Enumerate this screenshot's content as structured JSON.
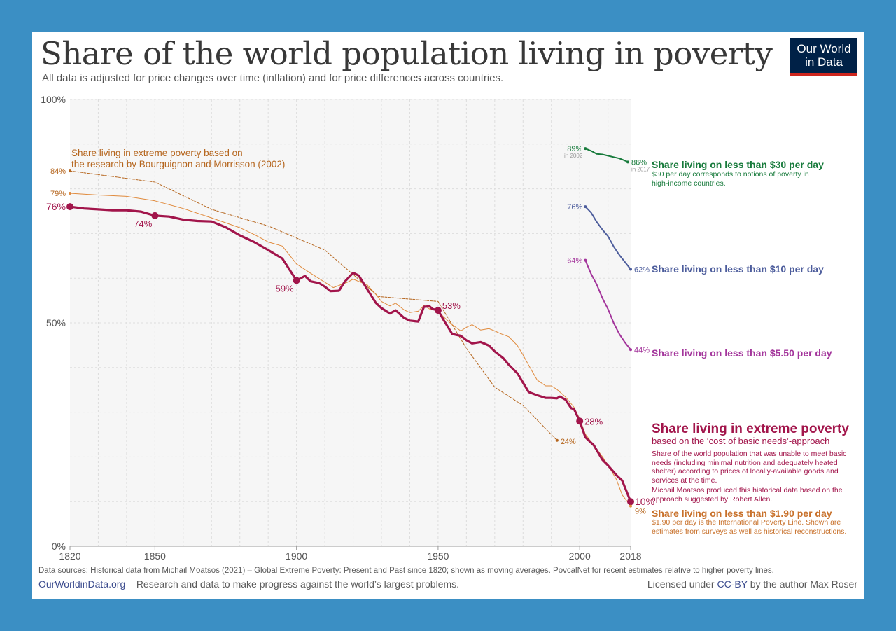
{
  "header": {
    "title": "Share of the world population living in poverty",
    "subtitle": "All data is adjusted for price changes over time (inflation) and for price differences across countries.",
    "logo_line1": "Our World",
    "logo_line2": "in Data"
  },
  "footer": {
    "sources": "Data sources: Historical data from Michail Moatsos (2021) – Global Extreme Poverty: Present and Past since 1820; shown as moving averages. PovcalNet for recent estimates relative to higher poverty lines.",
    "owid_link": "OurWorldinData.org",
    "owid_text": " – Research and data to make progress against the world’s largest problems.",
    "license_prefix": "Licensed under ",
    "license_link": "CC-BY",
    "license_suffix": " by the author Max Roser"
  },
  "colors": {
    "extreme": "#a2154b",
    "bm2002": "#b5651d",
    "dollar190": "#e08a3c",
    "d30": "#177a3b",
    "d10": "#4d5d9c",
    "d550": "#a3359b",
    "plot_bg": "#f6f6f6",
    "grid": "#dddddd"
  },
  "chart_data": {
    "type": "line",
    "xlim": [
      1820,
      2018
    ],
    "ylim": [
      0,
      100
    ],
    "x_ticks": [
      "1820",
      "1850",
      "1900",
      "1950",
      "2000",
      "2018"
    ],
    "y_ticks": [
      "0%",
      "50%",
      "100%"
    ],
    "grid": true,
    "series": [
      {
        "key": "extreme",
        "label_title": "Share living in extreme poverty",
        "label_sub": "based on the ‘cost of basic needs’-approach",
        "label_desc1": "Share of the world population that was unable to meet basic needs (including minimal nutrition and adequately heated shelter) according to prices of locally-available goods and services at the time.",
        "label_desc2": "Michail Moatsos produced this historical data based on the approach suggested by Robert Allen.",
        "x": [
          1820,
          1825,
          1830,
          1835,
          1840,
          1845,
          1850,
          1855,
          1860,
          1865,
          1870,
          1875,
          1880,
          1885,
          1890,
          1895,
          1900,
          1903,
          1905,
          1908,
          1910,
          1912,
          1915,
          1917,
          1920,
          1922,
          1925,
          1928,
          1930,
          1933,
          1935,
          1938,
          1940,
          1943,
          1945,
          1947,
          1948,
          1950,
          1952,
          1955,
          1958,
          1960,
          1962,
          1965,
          1968,
          1970,
          1973,
          1975,
          1978,
          1980,
          1982,
          1985,
          1988,
          1990,
          1992,
          1993,
          1995,
          1997,
          1998,
          2000,
          2002,
          2005,
          2008,
          2010,
          2013,
          2015,
          2018
        ],
        "y": [
          76,
          75.6,
          75.4,
          75.2,
          75.2,
          74.9,
          74,
          73.8,
          73.1,
          72.8,
          72.7,
          71.4,
          69.6,
          68.1,
          66.3,
          64.4,
          59.5,
          60.5,
          59.3,
          58.9,
          58.1,
          57.1,
          57.2,
          59.2,
          61.2,
          60.6,
          57.5,
          54.5,
          53.3,
          52.1,
          52.8,
          51.1,
          50.5,
          50.3,
          53.6,
          53.7,
          53.1,
          52.8,
          50.6,
          47.5,
          47.1,
          46.1,
          45.4,
          45.7,
          44.9,
          43.6,
          42.1,
          40.6,
          38.7,
          36.6,
          34.5,
          33.8,
          33.2,
          33.2,
          33.1,
          33.5,
          32.8,
          30.9,
          30.7,
          28,
          24.4,
          22.6,
          19.4,
          18.1,
          15.9,
          14.7,
          10
        ]
      },
      {
        "key": "bm2002",
        "label": "Share living in extreme poverty based on the research by Bourguignon and Morrisson (2002)",
        "x": [
          1820,
          1850,
          1870,
          1890,
          1910,
          1929,
          1950,
          1960,
          1970,
          1980,
          1992
        ],
        "y": [
          84,
          81.5,
          75.4,
          71.7,
          66.3,
          55.9,
          54.8,
          44.3,
          35.6,
          31.5,
          23.7
        ]
      },
      {
        "key": "dollar190",
        "label_title": "Share living on less than $1.90 per day",
        "label_desc": "$1.90 per day is the International Poverty Line. Shown are estimates from surveys as well as historical reconstructions.",
        "x": [
          1820,
          1830,
          1840,
          1850,
          1860,
          1870,
          1880,
          1885,
          1890,
          1895,
          1900,
          1905,
          1910,
          1913,
          1918,
          1920,
          1925,
          1928,
          1930,
          1933,
          1935,
          1938,
          1940,
          1943,
          1945,
          1947,
          1950,
          1952,
          1955,
          1958,
          1960,
          1962,
          1965,
          1968,
          1970,
          1972,
          1975,
          1978,
          1980,
          1982,
          1985,
          1988,
          1990,
          1992,
          1995,
          1998,
          2000,
          2002,
          2005,
          2008,
          2010,
          2013,
          2015,
          2018
        ],
        "y": [
          79,
          78.6,
          78.3,
          77.3,
          75.6,
          73.5,
          71.3,
          69.8,
          68.1,
          67.2,
          63.2,
          61.1,
          59.1,
          57.9,
          59.1,
          59.8,
          58.5,
          56.4,
          54.8,
          53.8,
          54.4,
          52.9,
          52.3,
          52.6,
          53.9,
          53.1,
          52.7,
          51.3,
          49.6,
          48.2,
          49,
          49.6,
          48.4,
          48.7,
          48.2,
          47.6,
          46.9,
          44.9,
          42.8,
          40.5,
          37.2,
          35.9,
          35.9,
          35.1,
          33.4,
          31.1,
          28.5,
          25.1,
          22.6,
          20.1,
          18.2,
          14.9,
          11.5,
          9
        ]
      },
      {
        "key": "d30",
        "label_title": "Share living on less than $30 per day",
        "label_desc": "$30 per day corresponds to notions of poverty in high-income countries.",
        "x": [
          2002,
          2004,
          2006,
          2008,
          2010,
          2012,
          2014,
          2016,
          2017
        ],
        "y": [
          89,
          88.5,
          87.8,
          87.7,
          87.4,
          87.1,
          86.8,
          86.3,
          86
        ]
      },
      {
        "key": "d10",
        "label_title": "Share living on less than $10 per day",
        "x": [
          2002,
          2004,
          2006,
          2008,
          2010,
          2012,
          2014,
          2016,
          2018
        ],
        "y": [
          76,
          74.7,
          72.6,
          70.9,
          69.4,
          67.1,
          65.2,
          63.6,
          62
        ]
      },
      {
        "key": "d550",
        "label_title": "Share living on less than $5.50 per day",
        "x": [
          2002,
          2004,
          2006,
          2008,
          2010,
          2012,
          2014,
          2016,
          2018
        ],
        "y": [
          64,
          61,
          58.6,
          55.6,
          53.1,
          50,
          47.5,
          45.6,
          44
        ]
      }
    ],
    "annotations": {
      "extreme_1820": "76%",
      "extreme_1850": "74%",
      "extreme_1900": "59%",
      "extreme_1950": "53%",
      "extreme_2000": "28%",
      "extreme_2018": "10%",
      "bm_1820": "84%",
      "bm_1992": "24%",
      "usd190_1820": "79%",
      "usd190_2018": "9%",
      "d30_start": "89%",
      "d30_start_note": "in 2002",
      "d30_end": "86%",
      "d30_end_note": "in 2017",
      "d10_start": "76%",
      "d10_end": "62%",
      "d550_start": "64%",
      "d550_end": "44%"
    }
  }
}
